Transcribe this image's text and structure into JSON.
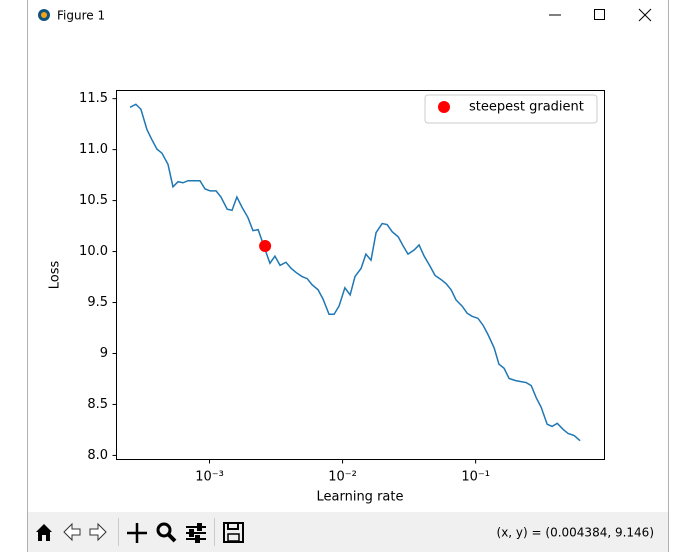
{
  "window": {
    "title": "Figure 1",
    "status": "(x, y) = (0.004384, 9.146)"
  },
  "chart_data": {
    "type": "line",
    "xlabel": "Learning rate",
    "ylabel": "Loss",
    "xscale": "log",
    "xlim": [
      0.0002,
      0.93
    ],
    "ylim": [
      7.96,
      11.58
    ],
    "xticks": [
      {
        "value": 0.001,
        "label": "10⁻³"
      },
      {
        "value": 0.01,
        "label": "10⁻²"
      },
      {
        "value": 0.1,
        "label": "10⁻¹"
      }
    ],
    "yticks": [
      {
        "value": 8,
        "label": "8.0"
      },
      8.5,
      9,
      9.5,
      {
        "value": 10,
        "label": "10.0"
      },
      10.5,
      {
        "value": 11,
        "label": "11.0"
      },
      11.5
    ],
    "legend": "upper right",
    "series": [
      {
        "type": "line",
        "color": "#1f77b4",
        "x": [
          0.000255,
          0.000282,
          0.000308,
          0.000342,
          0.000373,
          0.000406,
          0.000443,
          0.000492,
          0.000536,
          0.000585,
          0.000638,
          0.000695,
          0.000771,
          0.000855,
          0.000933,
          0.00102,
          0.00113,
          0.00123,
          0.00137,
          0.00149,
          0.00162,
          0.00177,
          0.00196,
          0.00214,
          0.00234,
          0.00255,
          0.00287,
          0.00313,
          0.00342,
          0.00379,
          0.00414,
          0.00451,
          0.005,
          0.00546,
          0.00595,
          0.0066,
          0.00719,
          0.00798,
          0.00871,
          0.00949,
          0.0105,
          0.0115,
          0.0125,
          0.0139,
          0.0151,
          0.0165,
          0.018,
          0.02,
          0.0218,
          0.0238,
          0.0264,
          0.0288,
          0.0313,
          0.0348,
          0.0379,
          0.0414,
          0.0459,
          0.05,
          0.0555,
          0.0605,
          0.066,
          0.0719,
          0.0798,
          0.0871,
          0.0949,
          0.105,
          0.115,
          0.125,
          0.139,
          0.151,
          0.165,
          0.18,
          0.2,
          0.218,
          0.242,
          0.264,
          0.288,
          0.313,
          0.348,
          0.379,
          0.414,
          0.459,
          0.5,
          0.555,
          0.615
        ],
        "values": [
          11.41,
          11.44,
          11.39,
          11.19,
          11.09,
          11.0,
          10.96,
          10.85,
          10.63,
          10.68,
          10.67,
          10.69,
          10.69,
          10.69,
          10.61,
          10.59,
          10.59,
          10.53,
          10.41,
          10.4,
          10.53,
          10.43,
          10.33,
          10.2,
          10.21,
          10.07,
          9.88,
          9.95,
          9.86,
          9.89,
          9.83,
          9.79,
          9.75,
          9.73,
          9.67,
          9.62,
          9.53,
          9.38,
          9.38,
          9.46,
          9.64,
          9.57,
          9.75,
          9.83,
          9.97,
          9.91,
          10.18,
          10.27,
          10.26,
          10.19,
          10.14,
          10.05,
          9.97,
          10.01,
          10.06,
          9.95,
          9.85,
          9.76,
          9.72,
          9.68,
          9.62,
          9.52,
          9.46,
          9.39,
          9.36,
          9.34,
          9.27,
          9.18,
          9.05,
          8.89,
          8.85,
          8.75,
          8.73,
          8.72,
          8.71,
          8.68,
          8.56,
          8.47,
          8.3,
          8.28,
          8.31,
          8.25,
          8.21,
          8.19,
          8.14
        ]
      },
      {
        "type": "scatter",
        "name": "steepest gradient",
        "color": "#ff0000",
        "x": [
          0.00264
        ],
        "values": [
          10.05
        ]
      }
    ]
  }
}
